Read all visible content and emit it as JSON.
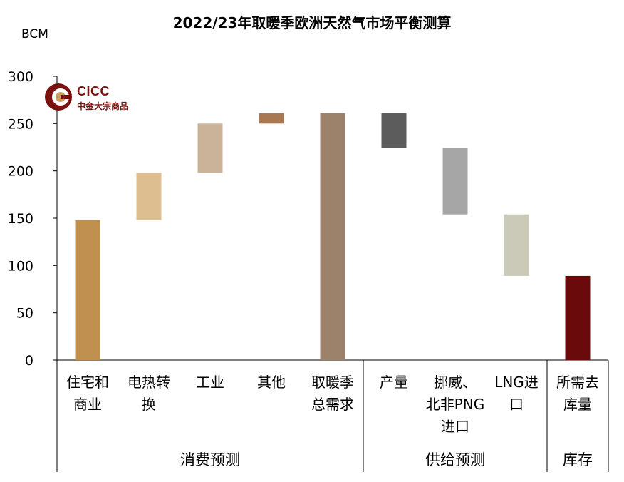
{
  "title": "2022/23年取暖季欧洲天然气市场平衡测算",
  "logo": {
    "name": "CICC",
    "subtitle": "中金大宗商品"
  },
  "chart_data": {
    "type": "bar",
    "subtype": "waterfall",
    "unit": "BCM",
    "ylim": [
      0,
      300
    ],
    "yticks": [
      0,
      50,
      100,
      150,
      200,
      250,
      300
    ],
    "categories": [
      [
        "住宅和",
        "商业"
      ],
      [
        "电热转",
        "换"
      ],
      [
        "工业"
      ],
      [
        "其他"
      ],
      [
        "取暖季",
        "总需求"
      ],
      [
        "产量"
      ],
      [
        "挪威、",
        "北非PNG",
        "进口"
      ],
      [
        "LNG进",
        "口"
      ],
      [
        "所需去",
        "库量"
      ]
    ],
    "bars": [
      {
        "low": 0,
        "high": 148,
        "color": "#C0904F"
      },
      {
        "low": 148,
        "high": 198,
        "color": "#DDBE91"
      },
      {
        "low": 198,
        "high": 250,
        "color": "#CBB39A"
      },
      {
        "low": 250,
        "high": 261,
        "color": "#A87852"
      },
      {
        "low": 0,
        "high": 261,
        "color": "#9C826A"
      },
      {
        "low": 224,
        "high": 261,
        "color": "#5C5C5C"
      },
      {
        "low": 154,
        "high": 224,
        "color": "#A6A6A6"
      },
      {
        "low": 89,
        "high": 154,
        "color": "#CBCAB8"
      },
      {
        "low": 0,
        "high": 89,
        "color": "#6B0A0A"
      }
    ],
    "groups": [
      {
        "label": "消费预测",
        "from": 0,
        "to": 4
      },
      {
        "label": "供给预测",
        "from": 5,
        "to": 7
      },
      {
        "label": "库存",
        "from": 8,
        "to": 8
      }
    ]
  }
}
